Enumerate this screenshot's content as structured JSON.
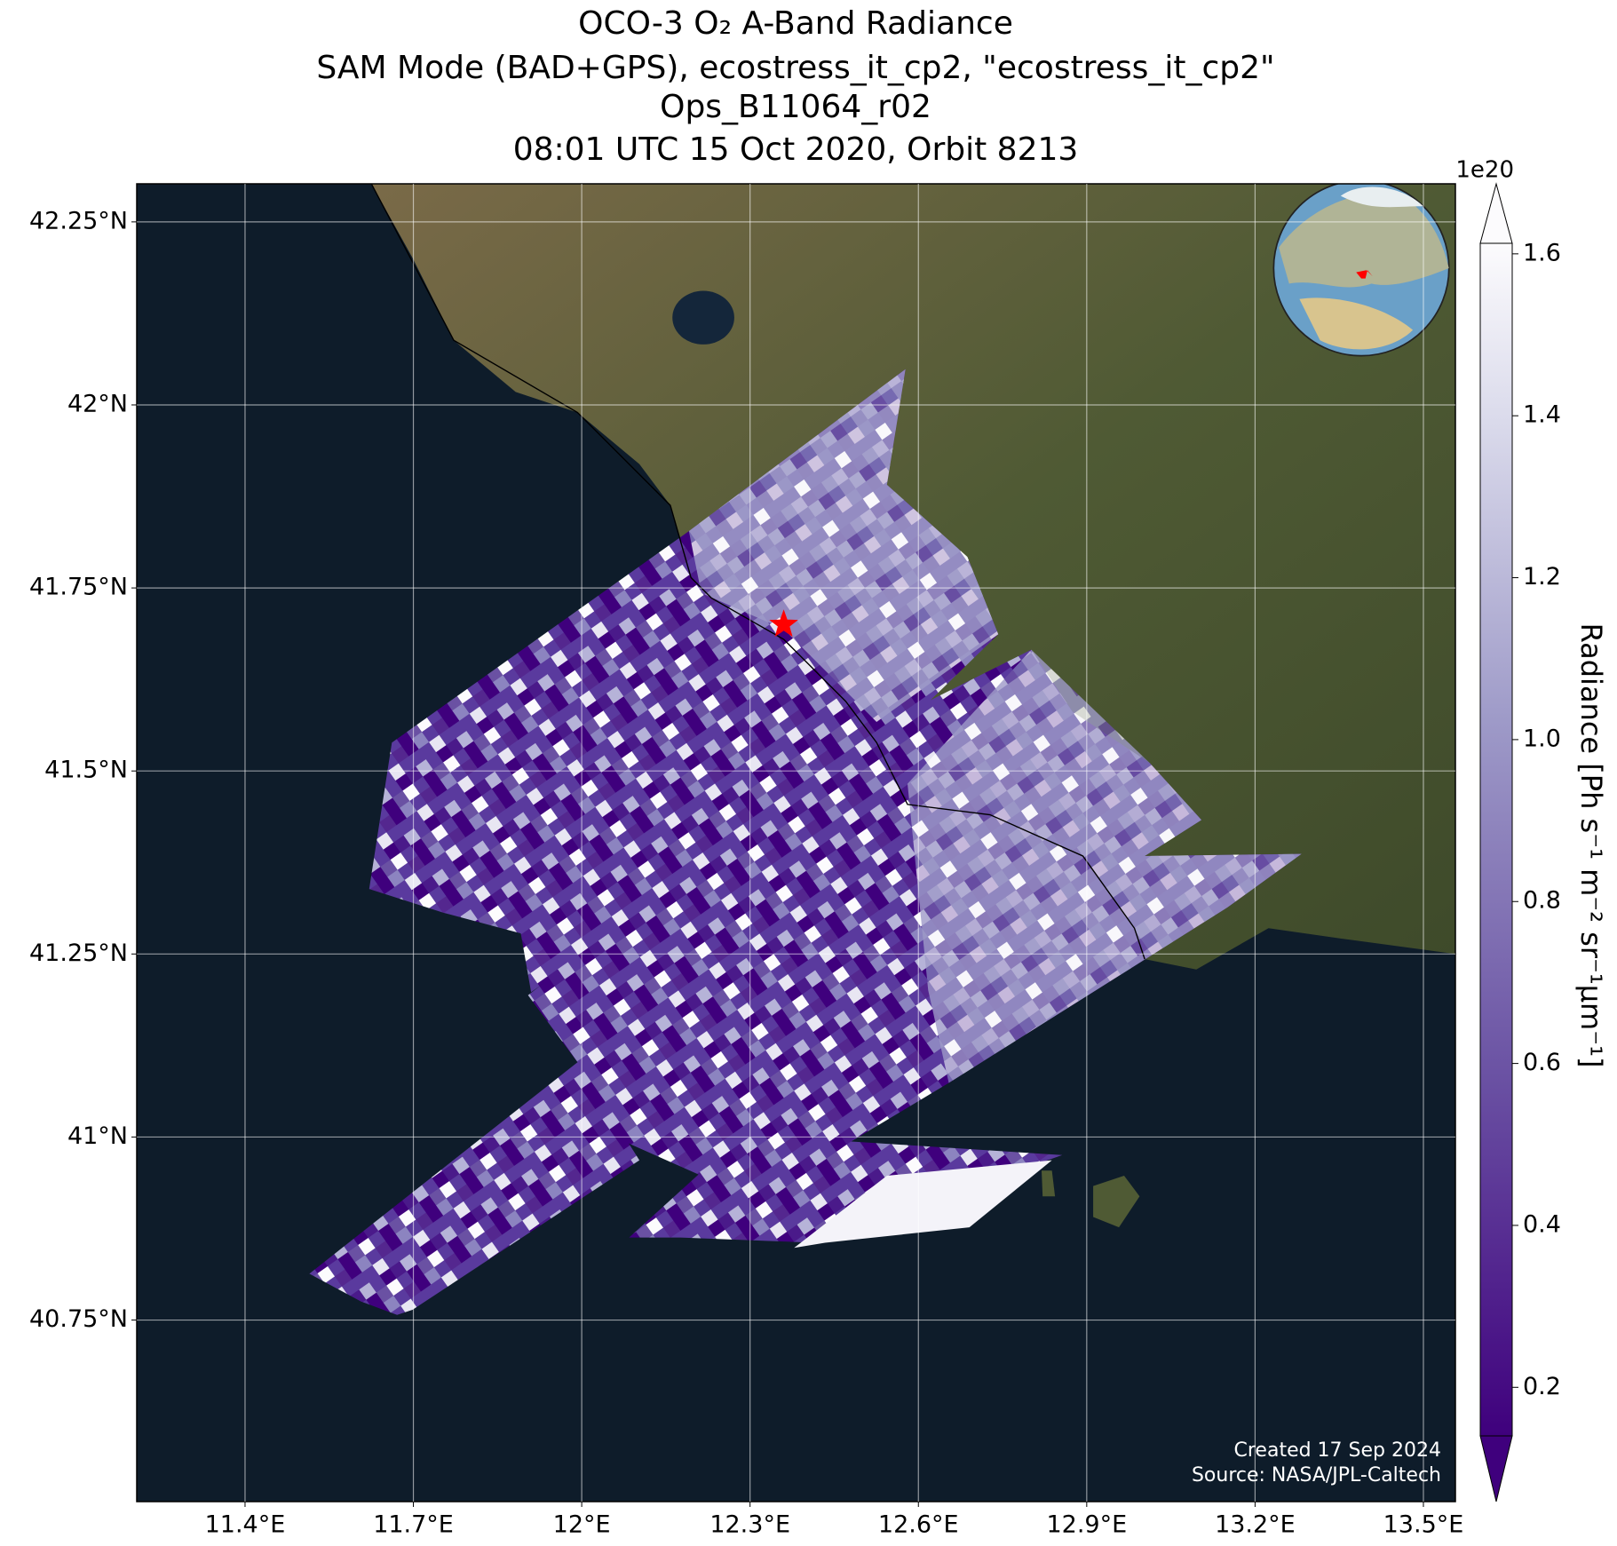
{
  "chart_data": {
    "type": "map",
    "title": "OCO-3 O₂ A-Band Radiance",
    "subtitle": [
      "SAM Mode (BAD+GPS), ecostress_it_cp2, \"ecostress_it_cp2\"",
      "Ops_B11064_r02",
      "08:01 UTC 15 Oct 2020, Orbit 8213"
    ],
    "xlim": [
      11.207,
      13.557
    ],
    "ylim": [
      40.502,
      42.302
    ],
    "xticks": [
      {
        "value": 11.4,
        "label": "11.4°E"
      },
      {
        "value": 11.7,
        "label": "11.7°E"
      },
      {
        "value": 12,
        "label": "12°E"
      },
      {
        "value": 12.3,
        "label": "12.3°E"
      },
      {
        "value": 12.6,
        "label": "12.6°E"
      },
      {
        "value": 12.9,
        "label": "12.9°E"
      },
      {
        "value": 13.2,
        "label": "13.2°E"
      },
      {
        "value": 13.5,
        "label": "13.5°E"
      }
    ],
    "yticks": [
      {
        "value": 40.75,
        "label": "40.75°N"
      },
      {
        "value": 41,
        "label": "41°N"
      },
      {
        "value": 41.25,
        "label": "41.25°N"
      },
      {
        "value": 41.5,
        "label": "41.5°N"
      },
      {
        "value": 41.75,
        "label": "41.75°N"
      },
      {
        "value": 42,
        "label": "42°N"
      },
      {
        "value": 42.25,
        "label": "42.25°N"
      }
    ],
    "grid": true,
    "target": {
      "lon": 12.36,
      "lat": 41.7,
      "color": "#ff0000"
    },
    "colorbar": {
      "label": "Radiance [Ph s⁻¹ m⁻² sr⁻¹µm⁻¹]",
      "offset": "1e20",
      "lim": [
        0.14,
        1.613
      ],
      "ticks": [
        0.2,
        0.4,
        0.6,
        0.8,
        {
          "value": 1,
          "label": "1.0"
        },
        1.2,
        1.4,
        1.6
      ],
      "colors": [
        "#3f007d",
        "#fcfbfd"
      ]
    },
    "annotations": [
      "Created 17 Sep 2024",
      "Source: NASA/JPL-Caltech"
    ]
  }
}
